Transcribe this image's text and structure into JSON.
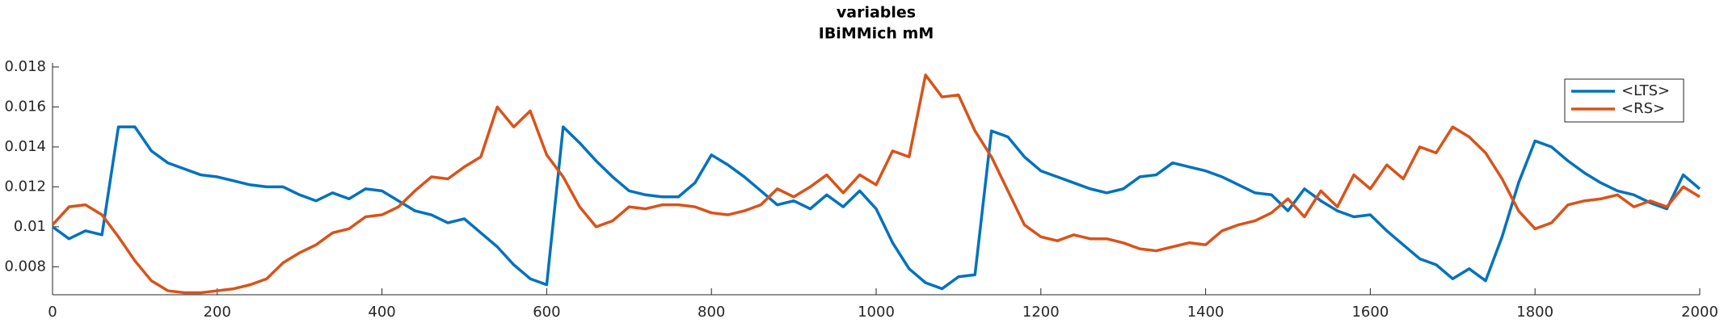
{
  "chart_data": {
    "type": "line",
    "title": "variables",
    "subtitle": "IBiMMich mM",
    "x": [
      0,
      20,
      40,
      60,
      80,
      100,
      120,
      140,
      160,
      180,
      200,
      220,
      240,
      260,
      280,
      300,
      320,
      340,
      360,
      380,
      400,
      420,
      440,
      460,
      480,
      500,
      520,
      540,
      560,
      580,
      600,
      620,
      640,
      660,
      680,
      700,
      720,
      740,
      760,
      780,
      800,
      820,
      840,
      860,
      880,
      900,
      920,
      940,
      960,
      980,
      1000,
      1020,
      1040,
      1060,
      1080,
      1100,
      1120,
      1140,
      1160,
      1180,
      1200,
      1220,
      1240,
      1260,
      1280,
      1300,
      1320,
      1340,
      1360,
      1380,
      1400,
      1420,
      1440,
      1460,
      1480,
      1500,
      1520,
      1540,
      1560,
      1580,
      1600,
      1620,
      1640,
      1660,
      1680,
      1700,
      1720,
      1740,
      1760,
      1780,
      1800,
      1820,
      1840,
      1860,
      1880,
      1900,
      1920,
      1940,
      1960,
      1980,
      2000
    ],
    "series": [
      {
        "name": "<LTS>",
        "color": "#0072BD",
        "values": [
          0.01,
          0.0094,
          0.0098,
          0.0096,
          0.015,
          0.015,
          0.0138,
          0.0132,
          0.0129,
          0.0126,
          0.0125,
          0.0123,
          0.0121,
          0.012,
          0.012,
          0.0116,
          0.0113,
          0.0117,
          0.0114,
          0.0119,
          0.0118,
          0.0113,
          0.0108,
          0.0106,
          0.0102,
          0.0104,
          0.0097,
          0.009,
          0.0081,
          0.0074,
          0.0071,
          0.015,
          0.0142,
          0.0133,
          0.0125,
          0.0118,
          0.0116,
          0.0115,
          0.0115,
          0.0122,
          0.0136,
          0.0131,
          0.0125,
          0.0118,
          0.0111,
          0.0113,
          0.0109,
          0.0116,
          0.011,
          0.0118,
          0.0109,
          0.0092,
          0.0079,
          0.0072,
          0.0069,
          0.0075,
          0.0076,
          0.0148,
          0.0145,
          0.0135,
          0.0128,
          0.0125,
          0.0122,
          0.0119,
          0.0117,
          0.0119,
          0.0125,
          0.0126,
          0.0132,
          0.013,
          0.0128,
          0.0125,
          0.0121,
          0.0117,
          0.0116,
          0.0108,
          0.0119,
          0.0113,
          0.0108,
          0.0105,
          0.0106,
          0.0098,
          0.0091,
          0.0084,
          0.0081,
          0.0074,
          0.0079,
          0.0073,
          0.0095,
          0.0122,
          0.0143,
          0.014,
          0.0133,
          0.0127,
          0.0122,
          0.0118,
          0.0116,
          0.0112,
          0.0109,
          0.0126,
          0.0119
        ]
      },
      {
        "name": "<RS>",
        "color": "#D95319",
        "values": [
          0.0101,
          0.011,
          0.0111,
          0.0106,
          0.0095,
          0.0083,
          0.0073,
          0.0068,
          0.0067,
          0.0067,
          0.0068,
          0.0069,
          0.0071,
          0.0074,
          0.0082,
          0.0087,
          0.0091,
          0.0097,
          0.0099,
          0.0105,
          0.0106,
          0.011,
          0.0118,
          0.0125,
          0.0124,
          0.013,
          0.0135,
          0.016,
          0.015,
          0.0158,
          0.0136,
          0.0125,
          0.011,
          0.01,
          0.0103,
          0.011,
          0.0109,
          0.0111,
          0.0111,
          0.011,
          0.0107,
          0.0106,
          0.0108,
          0.0111,
          0.0119,
          0.0115,
          0.012,
          0.0126,
          0.0117,
          0.0126,
          0.0121,
          0.0138,
          0.0135,
          0.0176,
          0.0165,
          0.0166,
          0.0148,
          0.0135,
          0.0118,
          0.0101,
          0.0095,
          0.0093,
          0.0096,
          0.0094,
          0.0094,
          0.0092,
          0.0089,
          0.0088,
          0.009,
          0.0092,
          0.0091,
          0.0098,
          0.0101,
          0.0103,
          0.0107,
          0.0114,
          0.0105,
          0.0118,
          0.011,
          0.0126,
          0.0119,
          0.0131,
          0.0124,
          0.014,
          0.0137,
          0.015,
          0.0145,
          0.0137,
          0.0124,
          0.0108,
          0.0099,
          0.0102,
          0.0111,
          0.0113,
          0.0114,
          0.0116,
          0.011,
          0.0113,
          0.011,
          0.012,
          0.0115
        ]
      }
    ],
    "xlim": [
      0,
      2000
    ],
    "xticks": [
      0,
      200,
      400,
      600,
      800,
      1000,
      1200,
      1400,
      1600,
      1800,
      2000
    ],
    "ylim": [
      0.0066,
      0.0182
    ],
    "yticks": [
      0.008,
      0.01,
      0.012,
      0.014,
      0.016,
      0.018
    ],
    "grid": false,
    "legend": "northeast"
  }
}
